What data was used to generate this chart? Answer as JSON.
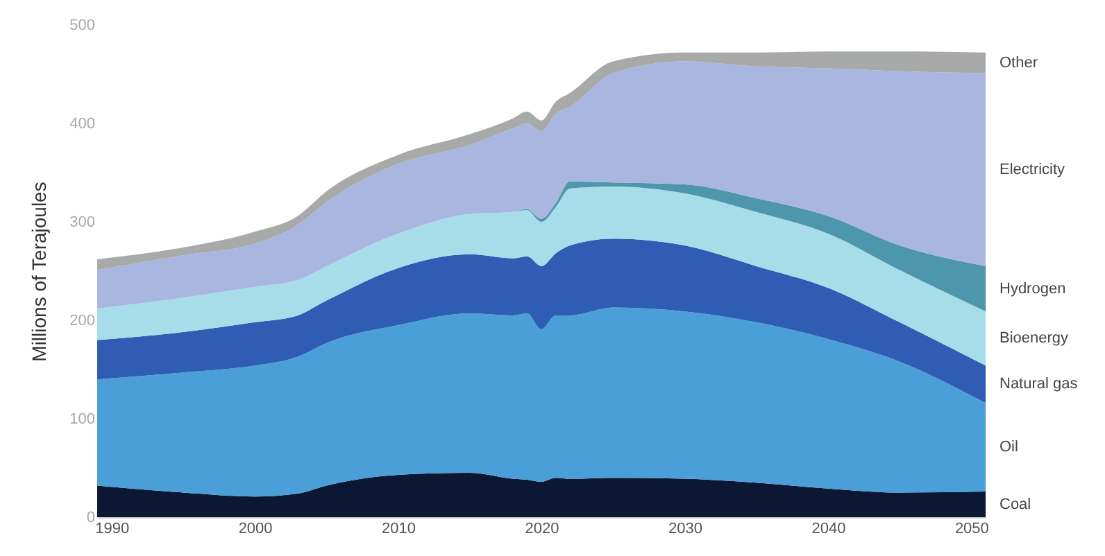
{
  "chart_data": {
    "type": "area",
    "stacked": true,
    "ylabel": "Millions of Terajoules",
    "x": [
      1989,
      1995,
      2000,
      2003,
      2005,
      2010,
      2015,
      2018,
      2019,
      2020,
      2021,
      2022,
      2025,
      2030,
      2035,
      2040,
      2045,
      2051
    ],
    "xlim": [
      1989,
      2051
    ],
    "xticks": [
      1990,
      2000,
      2010,
      2020,
      2030,
      2040,
      2050
    ],
    "ylim": [
      0,
      500
    ],
    "yticks": [
      0,
      100,
      200,
      300,
      400,
      500
    ],
    "series": [
      {
        "name": "Coal",
        "color": "#0b1733",
        "values": [
          32,
          25,
          21,
          24,
          32,
          43,
          45,
          39,
          38,
          36,
          40,
          39,
          40,
          39,
          35,
          29,
          25,
          26
        ]
      },
      {
        "name": "Oil",
        "color": "#4a9fd8",
        "values": [
          108,
          122,
          133,
          139,
          145,
          152,
          162,
          166,
          169,
          155,
          165,
          166,
          173,
          170,
          163,
          152,
          133,
          90
        ]
      },
      {
        "name": "Natural gas",
        "color": "#2f5db3",
        "values": [
          40,
          41,
          44,
          42,
          43,
          58,
          60,
          58,
          58,
          64,
          63,
          71,
          70,
          67,
          57,
          52,
          40,
          38
        ]
      },
      {
        "name": "Bioenergy",
        "color": "#a6dde8",
        "values": [
          32,
          35,
          36,
          36,
          35,
          35,
          41,
          47,
          47,
          45,
          47,
          58,
          53,
          53,
          55,
          55,
          53,
          55
        ]
      },
      {
        "name": "Hydrogen",
        "color": "#4d96ab",
        "values": [
          0,
          0,
          0,
          0,
          0,
          0,
          0,
          0,
          1,
          3,
          4,
          7,
          4,
          9,
          14,
          18,
          25,
          46
        ]
      },
      {
        "name": "Electricity",
        "color": "#a9b6e0",
        "values": [
          39,
          43,
          44,
          56,
          65,
          71,
          70,
          85,
          87,
          89,
          91,
          76,
          111,
          125,
          134,
          150,
          177,
          196
        ]
      },
      {
        "name": "Other",
        "color": "#a8a9a9",
        "values": [
          11,
          8,
          12,
          9,
          11,
          9,
          11,
          10,
          12,
          11,
          12,
          14,
          12,
          9,
          14,
          17,
          20,
          21
        ]
      }
    ]
  }
}
